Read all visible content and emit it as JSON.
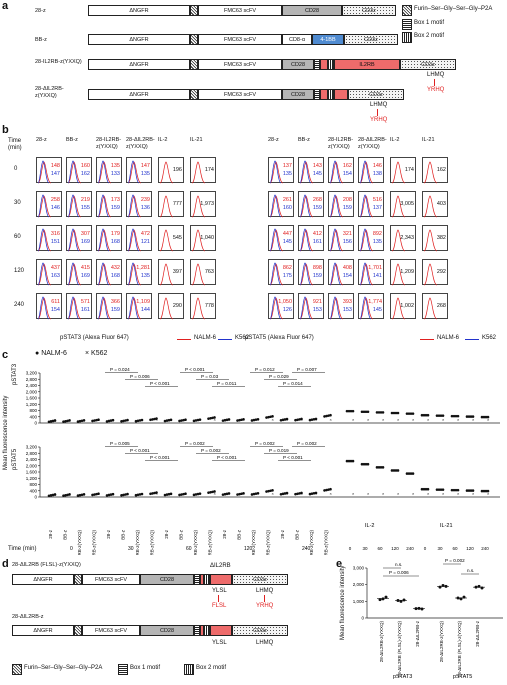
{
  "panel_a": {
    "letter": "a",
    "constructs": [
      {
        "label": "28-z",
        "segments": [
          "ΔNGFR",
          "FMC63 scFV",
          "CD28",
          "CD3z"
        ]
      },
      {
        "label": "BB-z",
        "segments": [
          "ΔNGFR",
          "FMC63 scFV",
          "CD8-α",
          "4-1BB",
          "CD3z"
        ]
      },
      {
        "label": "28-IL2RB-z(YXXQ)",
        "segments": [
          "ΔNGFR",
          "FMC63 scFV",
          "CD28",
          "IL2RB",
          "CD3z"
        ],
        "annotation": "LHMQ",
        "arrow": "YRHQ"
      },
      {
        "label": "28-ΔIL2RB-z(YXXQ)",
        "segments": [
          "ΔNGFR",
          "FMC63 scFV",
          "CD28",
          "CD3z"
        ],
        "annotation": "LHMQ",
        "arrow": "YRHQ"
      }
    ],
    "legend": [
      "Furin–Ser–Gly–Ser–Gly–P2A",
      "Box 1 motif",
      "Box 2 motif"
    ]
  },
  "panel_b": {
    "letter": "b",
    "time_label": "Time (min)",
    "times": [
      "0",
      "30",
      "60",
      "120",
      "240"
    ],
    "left_headers": [
      "28-z",
      "BB-z",
      "28-IL2RB-z(YXXQ)",
      "28-ΔIL2RB-z(YXXQ)",
      "IL-2",
      "IL-21"
    ],
    "right_headers": [
      "28-z",
      "BB-z",
      "28-IL2RB-z(YXXQ)",
      "28-ΔIL2RB-z(YXXQ)",
      "IL-2",
      "IL-21"
    ],
    "stat3_rows": [
      [
        [
          "148",
          "147"
        ],
        [
          "160",
          "162"
        ],
        [
          "135",
          "133"
        ],
        [
          "147",
          "135"
        ],
        [
          "196"
        ],
        [
          "174"
        ]
      ],
      [
        [
          "258",
          "146"
        ],
        [
          "219",
          "155"
        ],
        [
          "173",
          "159"
        ],
        [
          "239",
          "136"
        ],
        [
          "777"
        ],
        [
          "1,973"
        ]
      ],
      [
        [
          "316",
          "151"
        ],
        [
          "307",
          "169"
        ],
        [
          "179",
          "168"
        ],
        [
          "472",
          "121"
        ],
        [
          "545"
        ],
        [
          "1,040"
        ]
      ],
      [
        [
          "437",
          "163"
        ],
        [
          "415",
          "169"
        ],
        [
          "432",
          "168"
        ],
        [
          "1,281",
          "135"
        ],
        [
          "397"
        ],
        [
          "763"
        ]
      ],
      [
        [
          "611",
          "154"
        ],
        [
          "571",
          "161"
        ],
        [
          "366",
          "159"
        ],
        [
          "1,109",
          "144"
        ],
        [
          "290"
        ],
        [
          "778"
        ]
      ]
    ],
    "stat5_rows": [
      [
        [
          "137",
          "135"
        ],
        [
          "143",
          "145"
        ],
        [
          "162",
          "154"
        ],
        [
          "146",
          "138"
        ],
        [
          "174"
        ],
        [
          "162"
        ]
      ],
      [
        [
          "261",
          "160"
        ],
        [
          "268",
          "159"
        ],
        [
          "208",
          "159"
        ],
        [
          "516",
          "137"
        ],
        [
          "3,005"
        ],
        [
          "403"
        ]
      ],
      [
        [
          "447",
          "145"
        ],
        [
          "412",
          "161"
        ],
        [
          "321",
          "156"
        ],
        [
          "892",
          "135"
        ],
        [
          "2,343"
        ],
        [
          "382"
        ]
      ],
      [
        [
          "862",
          "175"
        ],
        [
          "898",
          "159"
        ],
        [
          "408",
          "154"
        ],
        [
          "1,701",
          "141"
        ],
        [
          "1,209"
        ],
        [
          "292"
        ]
      ],
      [
        [
          "1,050",
          "126"
        ],
        [
          "921",
          "153"
        ],
        [
          "393",
          "153"
        ],
        [
          "1,774",
          "145"
        ],
        [
          "1,002"
        ],
        [
          "268"
        ]
      ]
    ],
    "xaxis_left": "pSTAT3 (Alexa Fluor 647)",
    "xaxis_right": "pSTAT5 (Alexa Fluor 647)",
    "legend_red": "NALM-6",
    "legend_blue": "K562"
  },
  "panel_c": {
    "letter": "c",
    "legend": {
      "nalm": "NALM-6",
      "k562": "K562"
    },
    "ylabel": "Mean fluorescence intensity",
    "top_ylabel": "pSTAT3",
    "bottom_ylabel": "pSTAT5",
    "yticks": [
      "0",
      "400",
      "800",
      "1,200",
      "1,600",
      "2,000",
      "2,400",
      "2,800",
      "3,200"
    ],
    "x_groups": [
      "28-z",
      "BB-z",
      "28-IL2RB-z(YXXQ)",
      "28-ΔIL2RB-z(YXXQ)"
    ],
    "times": [
      "0",
      "30",
      "60",
      "120",
      "240"
    ],
    "time_label": "Time (min)",
    "cytokines": [
      "IL-2",
      "IL-21"
    ],
    "cytokine_times": [
      "0",
      "30",
      "60",
      "120",
      "240",
      "0",
      "30",
      "60",
      "120",
      "240"
    ],
    "top_pvals": [
      "P = 0.024",
      "P = 0.006",
      "P < 0.001",
      "P < 0.001",
      "P = 0.03",
      "P = 0.011",
      "P = 0.012",
      "P = 0.029",
      "P = 0.014",
      "P = 0.007"
    ],
    "bottom_pvals": [
      "P = 0.005",
      "P < 0.001",
      "P < 0.001",
      "P = 0.002",
      "P = 0.002",
      "P < 0.001",
      "P = 0.002",
      "P = 0.019",
      "P < 0.001",
      "P = 0.002"
    ]
  },
  "panel_d": {
    "letter": "d",
    "constructs": [
      {
        "label": "28-ΔIL2RB (FLSL)-z(YXXQ)",
        "segments": [
          "ΔNGFR",
          "FMC63 scFV",
          "CD28",
          "CD3z"
        ],
        "top_label": "ΔIL2RB",
        "motif1": "YLSL",
        "arrow1": "FLSL",
        "motif2": "LHMQ",
        "arrow2": "YRHQ"
      },
      {
        "label": "28-ΔIL2RB-z",
        "segments": [
          "ΔNGFR",
          "FMC63 scFV",
          "CD28",
          "CD3z"
        ],
        "motif1": "YLSL",
        "motif2": "LHMQ"
      }
    ],
    "legend": [
      "Furin–Ser–Gly–Ser–Gly–P2A",
      "Box 1 motif",
      "Box 2 motif"
    ]
  },
  "panel_e": {
    "letter": "e",
    "ylabel": "Mean fluorescence intensity",
    "yticks": [
      "0",
      "1,000",
      "2,000",
      "3,000"
    ],
    "groups": [
      "28-ΔIL2RB-z(YXXQ)",
      "28-ΔIL2RB (FLSL)-z(YXXQ)",
      "28-ΔIL2RB-z"
    ],
    "xlabels": [
      "pSTAT3",
      "pSTAT5"
    ],
    "stat3_pvals": [
      "n.s.",
      "P = 0.006"
    ],
    "stat5_pvals": [
      "P = 0.002",
      "n.s."
    ]
  },
  "chart_data": {
    "type": "scatter",
    "ylabel": "Mean fluorescence intensity",
    "series": [
      {
        "name": "pSTAT3",
        "values": [
          [
            1100,
            1150,
            1250
          ],
          [
            1050,
            1000,
            1080
          ],
          [
            560,
            580,
            540
          ]
        ]
      },
      {
        "name": "pSTAT5",
        "values": [
          [
            1850,
            1950,
            1900
          ],
          [
            1200,
            1150,
            1250
          ],
          [
            1850,
            1900,
            1800
          ]
        ]
      }
    ],
    "ylim": [
      0,
      3000
    ]
  }
}
